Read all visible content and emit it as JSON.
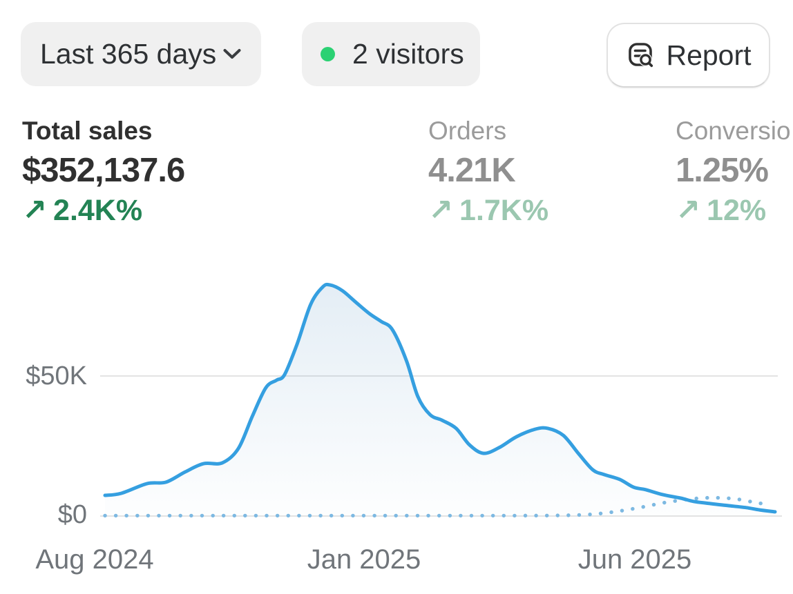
{
  "header": {
    "date_range_button": {
      "label": "Last 365 days"
    },
    "visitors_badge": {
      "label": "2 visitors",
      "dot_color": "#2bd173"
    },
    "report_button": {
      "label": "Report"
    }
  },
  "metrics": [
    {
      "label": "Total sales",
      "value": "$352,137.6",
      "delta_arrow": "↗",
      "delta": "2.4K%",
      "state": "active"
    },
    {
      "label": "Orders",
      "value": "4.21K",
      "delta_arrow": "↗",
      "delta": "1.7K%",
      "state": "inactive"
    },
    {
      "label": "Conversio",
      "value": "1.25%",
      "delta_arrow": "↗",
      "delta": "12%",
      "state": "inactive"
    }
  ],
  "colors": {
    "delta_positive": "#238354",
    "delta_positive_muted": "#9bc7b0",
    "accent_blue": "#359fe0"
  },
  "chart_data": {
    "type": "line",
    "unit": "USD",
    "y_ticks": [
      "$50K",
      "$0"
    ],
    "x_ticks": [
      "Aug 2024",
      "Jan 2025",
      "Jun 2025"
    ],
    "ylim": [
      0,
      85000
    ],
    "grid": "horizontal",
    "grid_values": [
      50000,
      0
    ],
    "legend": "none",
    "area_fill_top": "rgba(88,148,194,0.16)",
    "area_fill_bottom": "rgba(88,148,194,0.01)",
    "series": [
      {
        "name": "sales",
        "style": "solid",
        "color": "#359fe0",
        "points": [
          [
            0.0,
            7400
          ],
          [
            0.024,
            8100
          ],
          [
            0.063,
            11600
          ],
          [
            0.091,
            12100
          ],
          [
            0.12,
            15800
          ],
          [
            0.147,
            18700
          ],
          [
            0.175,
            19000
          ],
          [
            0.199,
            24100
          ],
          [
            0.22,
            35700
          ],
          [
            0.24,
            45800
          ],
          [
            0.256,
            48500
          ],
          [
            0.268,
            50500
          ],
          [
            0.287,
            61600
          ],
          [
            0.307,
            75600
          ],
          [
            0.325,
            81800
          ],
          [
            0.336,
            82500
          ],
          [
            0.354,
            80500
          ],
          [
            0.374,
            76400
          ],
          [
            0.395,
            72200
          ],
          [
            0.412,
            69500
          ],
          [
            0.429,
            66500
          ],
          [
            0.45,
            55400
          ],
          [
            0.467,
            42600
          ],
          [
            0.485,
            36200
          ],
          [
            0.503,
            34200
          ],
          [
            0.524,
            31300
          ],
          [
            0.544,
            25400
          ],
          [
            0.565,
            22400
          ],
          [
            0.588,
            24400
          ],
          [
            0.614,
            28300
          ],
          [
            0.642,
            31000
          ],
          [
            0.661,
            31300
          ],
          [
            0.684,
            28800
          ],
          [
            0.707,
            22200
          ],
          [
            0.728,
            16500
          ],
          [
            0.745,
            14800
          ],
          [
            0.768,
            13100
          ],
          [
            0.789,
            10300
          ],
          [
            0.807,
            9400
          ],
          [
            0.833,
            7600
          ],
          [
            0.859,
            6400
          ],
          [
            0.879,
            5200
          ],
          [
            0.905,
            4400
          ],
          [
            0.931,
            3700
          ],
          [
            0.957,
            3000
          ],
          [
            0.977,
            2200
          ],
          [
            1.0,
            1500
          ]
        ]
      },
      {
        "name": "comparison",
        "style": "dotted",
        "color": "#7db9e2",
        "points": [
          [
            0.0,
            150
          ],
          [
            0.204,
            150
          ],
          [
            0.41,
            150
          ],
          [
            0.586,
            150
          ],
          [
            0.668,
            200
          ],
          [
            0.709,
            400
          ],
          [
            0.74,
            900
          ],
          [
            0.771,
            1900
          ],
          [
            0.802,
            3200
          ],
          [
            0.833,
            4700
          ],
          [
            0.864,
            5800
          ],
          [
            0.89,
            6400
          ],
          [
            0.915,
            6500
          ],
          [
            0.941,
            6100
          ],
          [
            0.967,
            5000
          ],
          [
            0.991,
            4000
          ]
        ]
      }
    ]
  }
}
